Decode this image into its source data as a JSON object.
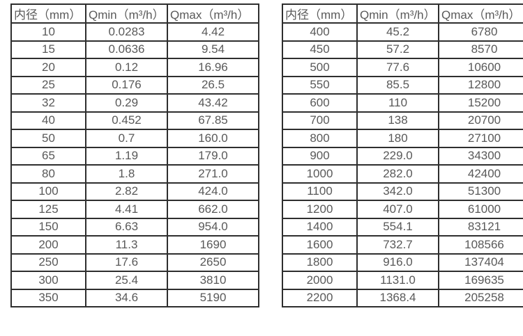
{
  "page": {
    "background_color": "#ffffff",
    "border_color": "#2e2e2e",
    "text_color": "#595959"
  },
  "chart_data": [
    {
      "type": "table",
      "name": "flow-spec-table-small-diameters",
      "columns": [
        "内径（mm）",
        "Qmin（m³/h）",
        "Qmax（m³/h）"
      ],
      "rows": [
        [
          "10",
          "0.0283",
          "4.42"
        ],
        [
          "15",
          "0.0636",
          "9.54"
        ],
        [
          "20",
          "0.12",
          "16.96"
        ],
        [
          "25",
          "0.176",
          "26.5"
        ],
        [
          "32",
          "0.29",
          "43.42"
        ],
        [
          "40",
          "0.452",
          "67.85"
        ],
        [
          "50",
          "0.7",
          "160.0"
        ],
        [
          "65",
          "1.19",
          "179.0"
        ],
        [
          "80",
          "1.8",
          "271.0"
        ],
        [
          "100",
          "2.82",
          "424.0"
        ],
        [
          "125",
          "4.41",
          "662.0"
        ],
        [
          "150",
          "6.63",
          "954.0"
        ],
        [
          "200",
          "11.3",
          "1690"
        ],
        [
          "250",
          "17.6",
          "2650"
        ],
        [
          "300",
          "25.4",
          "3810"
        ],
        [
          "350",
          "34.6",
          "5190"
        ]
      ]
    },
    {
      "type": "table",
      "name": "flow-spec-table-large-diameters",
      "columns": [
        "内径（mm）",
        "Qmin（m³/h）",
        "Qmax（m³/h）"
      ],
      "rows": [
        [
          "400",
          "45.2",
          "6780"
        ],
        [
          "450",
          "57.2",
          "8570"
        ],
        [
          "500",
          "77.6",
          "10600"
        ],
        [
          "550",
          "85.5",
          "12800"
        ],
        [
          "600",
          "110",
          "15200"
        ],
        [
          "700",
          "138",
          "20700"
        ],
        [
          "800",
          "180",
          "27100"
        ],
        [
          "900",
          "229.0",
          "34300"
        ],
        [
          "1000",
          "282.0",
          "42400"
        ],
        [
          "1100",
          "342.0",
          "51300"
        ],
        [
          "1200",
          "407.0",
          "61000"
        ],
        [
          "1400",
          "554.1",
          "83121"
        ],
        [
          "1600",
          "732.7",
          "108566"
        ],
        [
          "1800",
          "916.0",
          "137404"
        ],
        [
          "2000",
          "1131.0",
          "169635"
        ],
        [
          "2200",
          "1368.4",
          "205258"
        ]
      ]
    }
  ]
}
